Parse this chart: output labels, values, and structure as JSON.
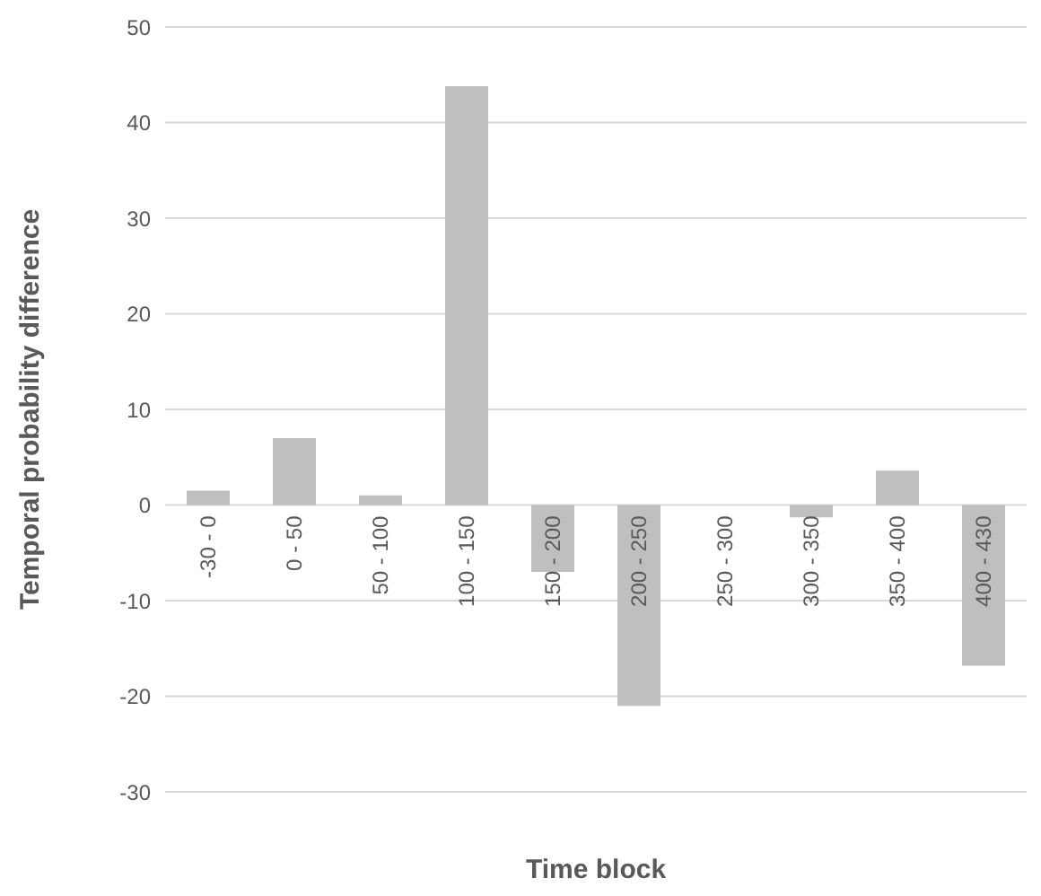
{
  "chart_data": {
    "type": "bar",
    "xlabel": "Time block",
    "ylabel": "Temporal probability difference",
    "categories": [
      "-30 - 0",
      "0 - 50",
      "50 - 100",
      "100 - 150",
      "150 - 200",
      "200 - 250",
      "250 - 300",
      "300 - 350",
      "350 - 400",
      "400 - 430"
    ],
    "values": [
      1.5,
      7.0,
      1.0,
      43.8,
      -7.0,
      -21.0,
      0,
      -1.3,
      3.6,
      -16.8
    ],
    "color": "#bfbfbf",
    "ylim": [
      -30,
      50
    ],
    "yticks": [
      -30,
      -20,
      -10,
      0,
      10,
      20,
      30,
      40,
      50
    ],
    "grid": "y"
  }
}
